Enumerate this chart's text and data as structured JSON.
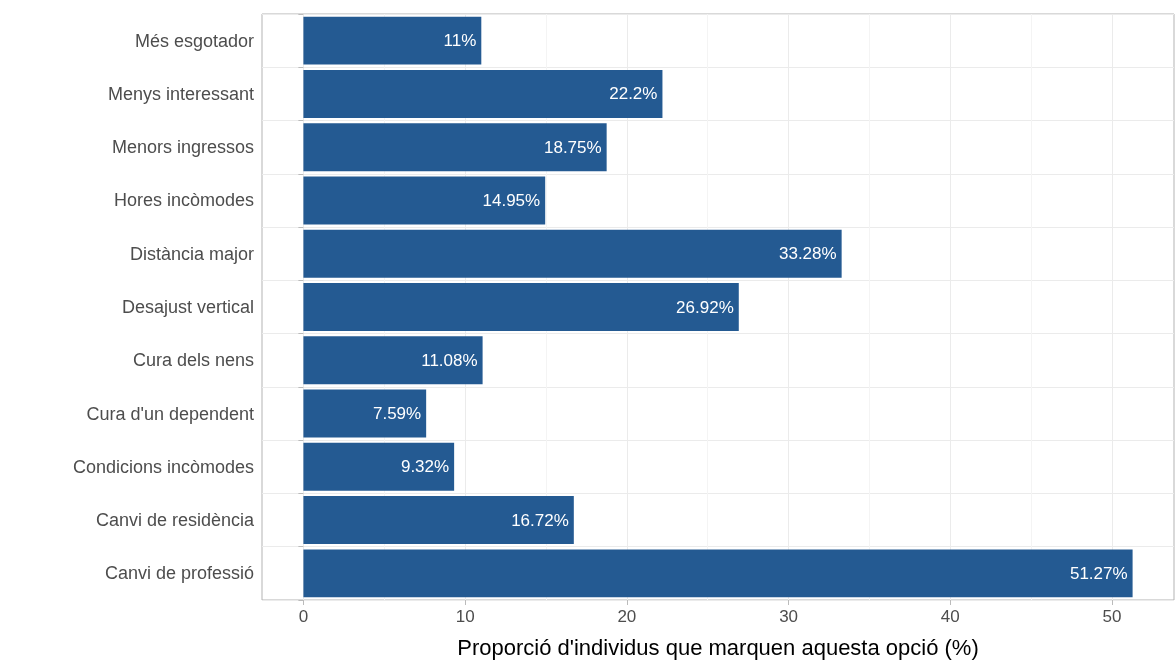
{
  "chart_data": {
    "type": "bar",
    "orientation": "horizontal",
    "xlabel": "Proporció d'individus que marquen aquesta opció (%)",
    "categories": [
      "Més esgotador",
      "Menys interessant",
      "Menors ingressos",
      "Hores incòmodes",
      "Distància major",
      "Desajust vertical",
      "Cura dels nens",
      "Cura d'un dependent",
      "Condicions incòmodes",
      "Canvi de residència",
      "Canvi de professió"
    ],
    "values": [
      11,
      22.2,
      18.75,
      14.95,
      33.28,
      26.92,
      11.08,
      7.59,
      9.32,
      16.72,
      51.27
    ],
    "value_labels": [
      "11%",
      "22.2%",
      "18.75%",
      "14.95%",
      "33.28%",
      "26.92%",
      "11.08%",
      "7.59%",
      "9.32%",
      "16.72%",
      "51.27%"
    ],
    "color": "#245a92",
    "xlim": [
      -2.56,
      53.83
    ],
    "xticks": [
      0,
      10,
      20,
      30,
      40,
      50
    ],
    "grid": true
  }
}
